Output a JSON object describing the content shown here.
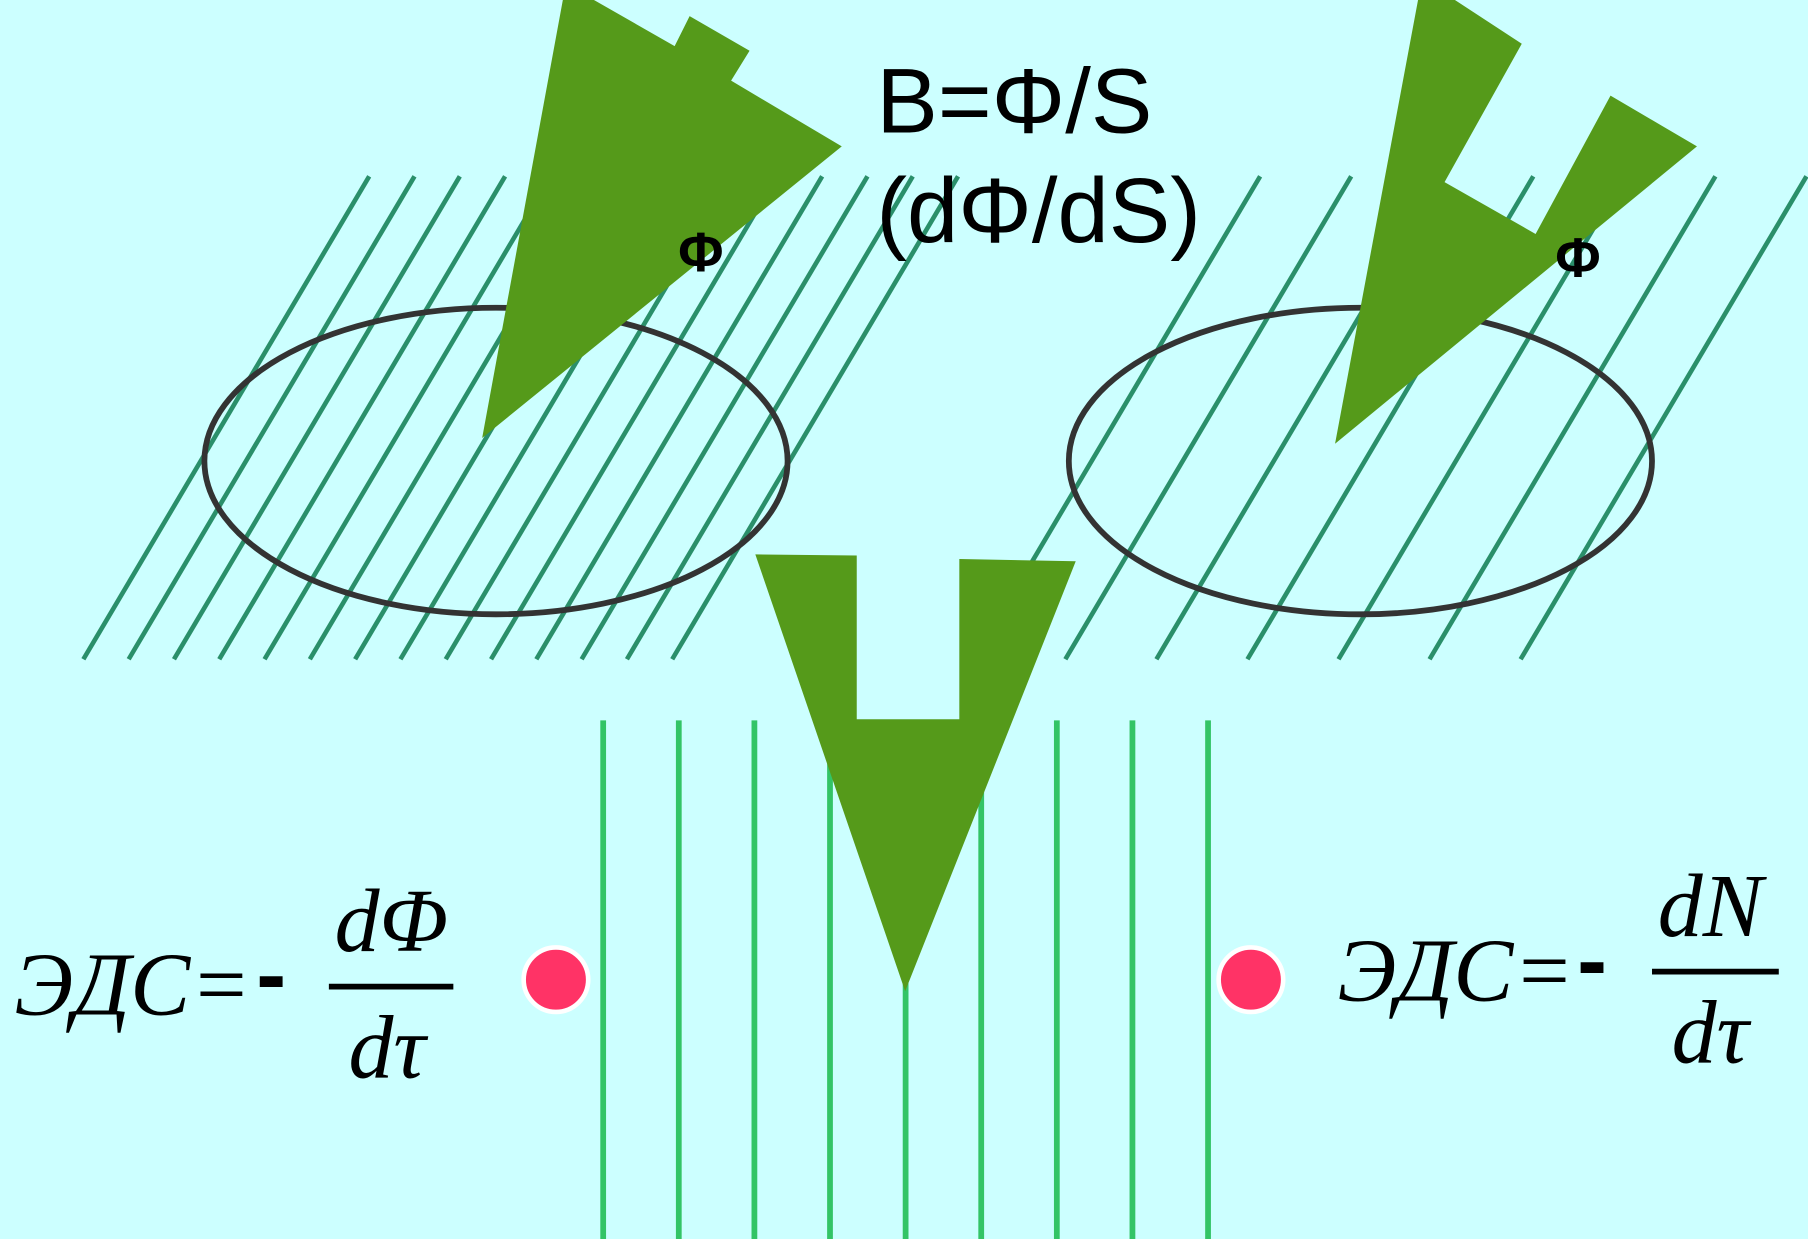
{
  "header": {
    "formula": "B=Φ/S",
    "derivative": "(dΦ/dS)"
  },
  "loops": [
    {
      "label": "Φ"
    },
    {
      "label": "Φ"
    }
  ],
  "equations": [
    {
      "lhs": "ЭДС=",
      "sign": "-",
      "numerator": "dΦ",
      "denominator": "dτ"
    },
    {
      "lhs": "ЭДС=",
      "sign": "-",
      "numerator": "dN",
      "denominator": "dτ"
    }
  ]
}
